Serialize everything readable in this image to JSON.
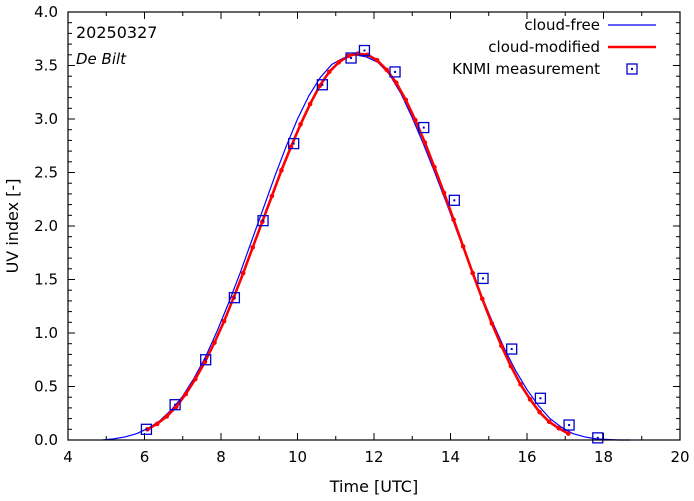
{
  "chart_data": {
    "type": "line",
    "title": "",
    "xlabel": "Time  [UTC]",
    "ylabel": "UV index  [-]",
    "xlim": [
      4,
      20
    ],
    "ylim": [
      0,
      4.0
    ],
    "x_ticks": [
      4,
      6,
      8,
      10,
      12,
      14,
      16,
      18,
      20
    ],
    "x_tick_labels": [
      "4",
      "6",
      "8",
      "10",
      "12",
      "14",
      "16",
      "18",
      "20"
    ],
    "y_ticks": [
      0,
      0.5,
      1.0,
      1.5,
      2.0,
      2.5,
      3.0,
      3.5,
      4.0
    ],
    "y_tick_labels": [
      "0.0",
      "0.5",
      "1.0",
      "1.5",
      "2.0",
      "2.5",
      "3.0",
      "3.5",
      "4.0"
    ],
    "annotations": {
      "date": "20250327",
      "station": "De Bilt"
    },
    "legend": {
      "position": "top-right",
      "entries": [
        "cloud-free",
        "cloud-modified",
        "KNMI measurement"
      ]
    },
    "series": [
      {
        "name": "cloud-free",
        "style": "thin-line",
        "color": "#0000ff",
        "x": [
          4.9,
          5.2,
          5.5,
          5.8,
          6.1,
          6.4,
          6.7,
          7.0,
          7.3,
          7.6,
          7.9,
          8.2,
          8.5,
          8.8,
          9.1,
          9.4,
          9.7,
          10.0,
          10.3,
          10.6,
          10.9,
          11.2,
          11.5,
          11.8,
          12.1,
          12.4,
          12.7,
          13.0,
          13.3,
          13.6,
          13.9,
          14.2,
          14.5,
          14.8,
          15.1,
          15.4,
          15.7,
          16.0,
          16.3,
          16.6,
          16.9,
          17.2,
          17.5,
          17.8,
          18.1,
          18.4,
          18.7
        ],
        "y": [
          0.0,
          0.01,
          0.03,
          0.06,
          0.11,
          0.18,
          0.28,
          0.41,
          0.58,
          0.78,
          1.02,
          1.28,
          1.56,
          1.86,
          2.16,
          2.46,
          2.74,
          3.0,
          3.22,
          3.39,
          3.51,
          3.57,
          3.6,
          3.58,
          3.53,
          3.42,
          3.24,
          3.01,
          2.76,
          2.49,
          2.21,
          1.92,
          1.64,
          1.36,
          1.1,
          0.86,
          0.65,
          0.47,
          0.32,
          0.2,
          0.12,
          0.06,
          0.03,
          0.01,
          0.005,
          0.0,
          0.0
        ]
      },
      {
        "name": "cloud-modified",
        "style": "thick-line-with-dots",
        "color": "#ff0000",
        "x": [
          6.08,
          6.33,
          6.58,
          6.83,
          7.08,
          7.33,
          7.58,
          7.83,
          8.08,
          8.33,
          8.58,
          8.83,
          9.08,
          9.33,
          9.58,
          9.83,
          10.08,
          10.33,
          10.58,
          10.83,
          11.08,
          11.33,
          11.58,
          11.83,
          12.08,
          12.33,
          12.58,
          12.83,
          13.08,
          13.33,
          13.58,
          13.83,
          14.08,
          14.33,
          14.58,
          14.83,
          15.08,
          15.33,
          15.58,
          15.83,
          16.08,
          16.33,
          16.58,
          16.83,
          17.08
        ],
        "y": [
          0.1,
          0.15,
          0.22,
          0.31,
          0.43,
          0.57,
          0.73,
          0.91,
          1.11,
          1.33,
          1.56,
          1.8,
          2.04,
          2.28,
          2.52,
          2.74,
          2.95,
          3.14,
          3.31,
          3.44,
          3.53,
          3.59,
          3.61,
          3.6,
          3.55,
          3.46,
          3.34,
          3.18,
          2.99,
          2.78,
          2.55,
          2.31,
          2.06,
          1.81,
          1.56,
          1.32,
          1.09,
          0.88,
          0.69,
          0.52,
          0.38,
          0.26,
          0.17,
          0.11,
          0.06
        ]
      },
      {
        "name": "KNMI measurement",
        "style": "open-square-markers",
        "color": "#0000cc",
        "x": [
          6.05,
          6.8,
          7.6,
          8.35,
          9.1,
          9.9,
          10.65,
          11.4,
          11.75,
          12.55,
          13.3,
          14.1,
          14.85,
          15.6,
          16.35,
          17.1,
          17.85
        ],
        "y": [
          0.1,
          0.33,
          0.75,
          1.33,
          2.05,
          2.77,
          3.32,
          3.57,
          3.64,
          3.44,
          2.92,
          2.24,
          1.51,
          0.85,
          0.39,
          0.14,
          0.02
        ]
      }
    ]
  },
  "colors": {
    "cloud_free": "#0000ff",
    "cloud_modified": "#ff0000",
    "measurement": "#0000cc",
    "dot": "#ff0000",
    "frame": "#000000"
  }
}
